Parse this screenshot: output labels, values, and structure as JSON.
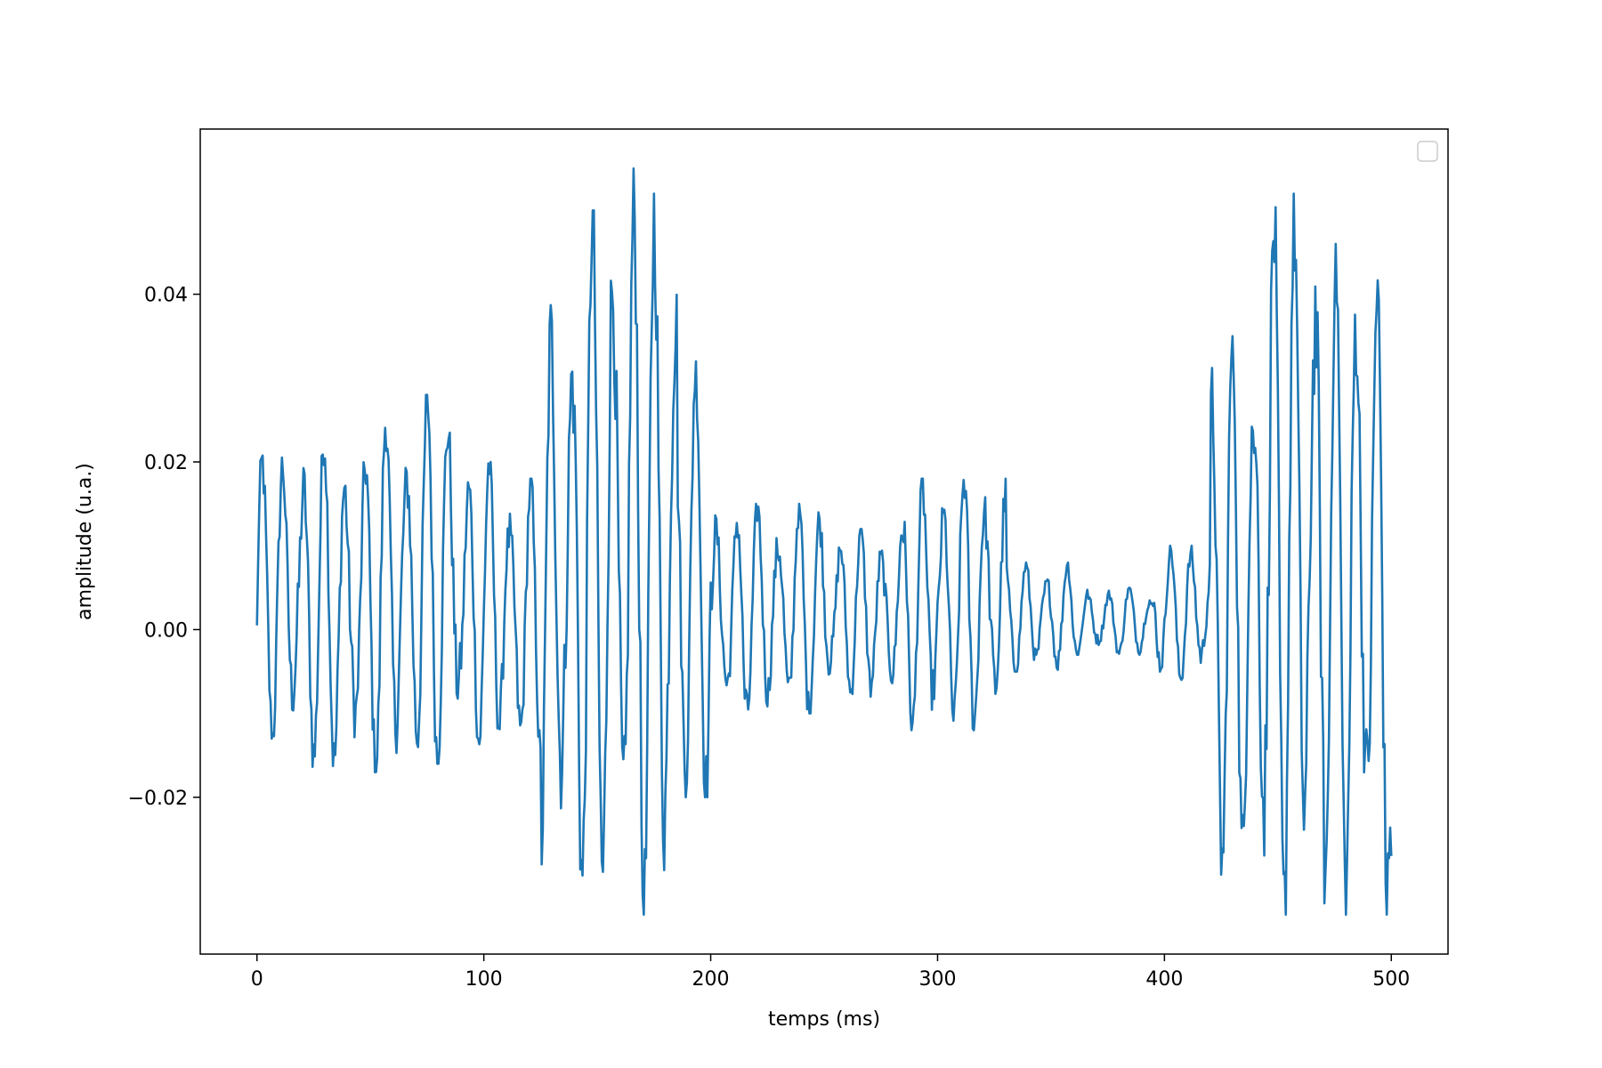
{
  "chart_data": {
    "type": "line",
    "title": "",
    "xlabel": "temps (ms)",
    "ylabel": "amplitude (u.a.)",
    "xlim": [
      -25,
      525
    ],
    "ylim": [
      -0.0387,
      0.0597
    ],
    "xticks": [
      0,
      100,
      200,
      300,
      400,
      500
    ],
    "xtick_labels": [
      "0",
      "100",
      "200",
      "300",
      "400",
      "500"
    ],
    "yticks": [
      -0.02,
      0.0,
      0.02,
      0.04
    ],
    "ytick_labels": [
      "−0.02",
      "0.00",
      "0.02",
      "0.04"
    ],
    "grid": false,
    "legend": "top-right (empty)",
    "series": [
      {
        "color": "#1f77b4",
        "x_start": 0,
        "x_end": 500,
        "segments": [
          {
            "x0": 0,
            "x1": 18,
            "max": 0.021,
            "min": -0.013
          },
          {
            "x0": 18,
            "x1": 36,
            "max": 0.023,
            "min": -0.017
          },
          {
            "x0": 36,
            "x1": 54,
            "max": 0.022,
            "min": -0.017
          },
          {
            "x0": 54,
            "x1": 72,
            "max": 0.026,
            "min": -0.016
          },
          {
            "x0": 72,
            "x1": 90,
            "max": 0.028,
            "min": -0.016
          },
          {
            "x0": 90,
            "x1": 110,
            "max": 0.02,
            "min": -0.014
          },
          {
            "x0": 110,
            "x1": 125,
            "max": 0.018,
            "min": -0.016
          },
          {
            "x0": 125,
            "x1": 140,
            "max": 0.039,
            "min": -0.028
          },
          {
            "x0": 140,
            "x1": 155,
            "max": 0.05,
            "min": -0.033
          },
          {
            "x0": 155,
            "x1": 170,
            "max": 0.055,
            "min": -0.035
          },
          {
            "x0": 170,
            "x1": 185,
            "max": 0.052,
            "min": -0.034
          },
          {
            "x0": 185,
            "x1": 200,
            "max": 0.032,
            "min": -0.02
          },
          {
            "x0": 200,
            "x1": 215,
            "max": 0.015,
            "min": -0.012
          },
          {
            "x0": 215,
            "x1": 250,
            "max": 0.015,
            "min": -0.01
          },
          {
            "x0": 250,
            "x1": 285,
            "max": 0.012,
            "min": -0.008
          },
          {
            "x0": 285,
            "x1": 330,
            "max": 0.018,
            "min": -0.012
          },
          {
            "x0": 330,
            "x1": 360,
            "max": 0.008,
            "min": -0.005
          },
          {
            "x0": 360,
            "x1": 395,
            "max": 0.005,
            "min": -0.003
          },
          {
            "x0": 395,
            "x1": 420,
            "max": 0.01,
            "min": -0.006
          },
          {
            "x0": 420,
            "x1": 440,
            "max": 0.035,
            "min": -0.03
          },
          {
            "x0": 440,
            "x1": 470,
            "max": 0.052,
            "min": -0.034
          },
          {
            "x0": 470,
            "x1": 500,
            "max": 0.046,
            "min": -0.034
          }
        ],
        "end_value": -0.027
      }
    ]
  },
  "colors": {
    "line": "#1f77b4",
    "axes": "#000000",
    "background": "#ffffff",
    "legend_border": "#cccccc"
  }
}
